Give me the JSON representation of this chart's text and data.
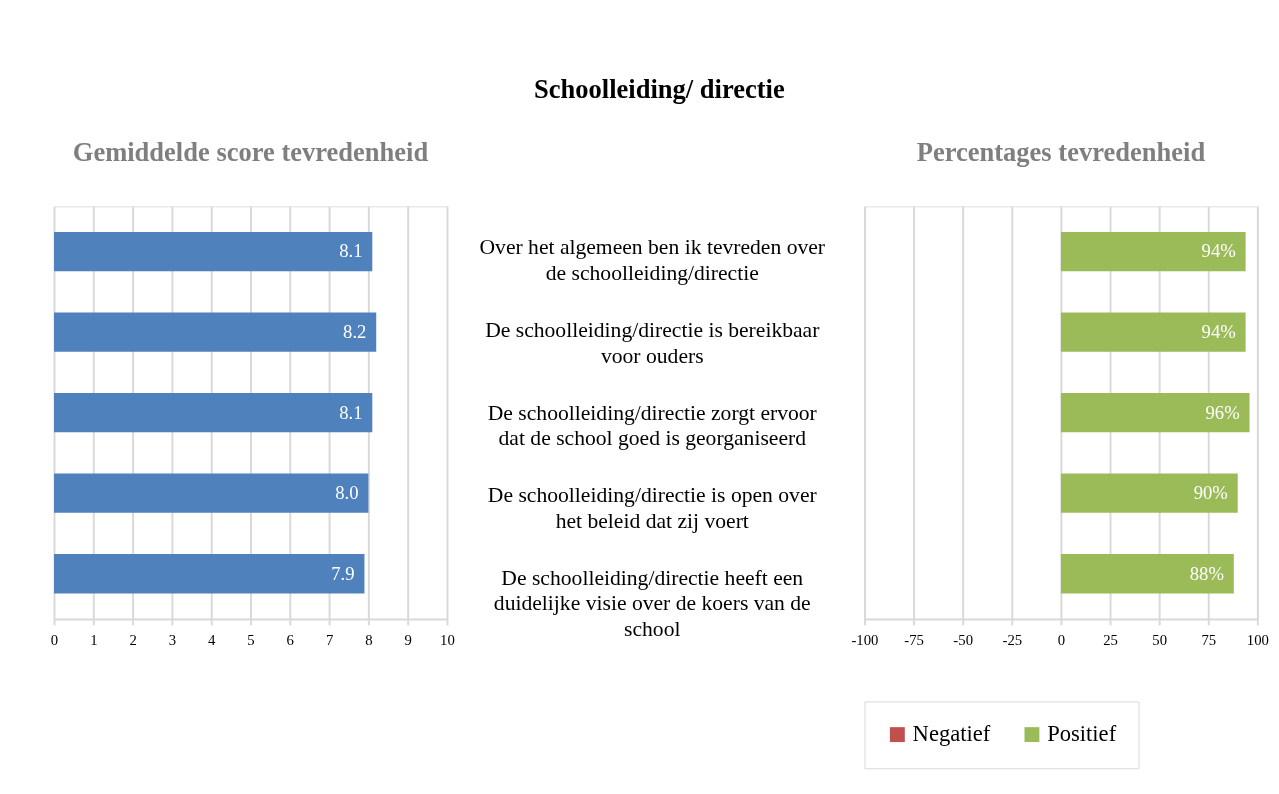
{
  "chart_data": [
    {
      "type": "other",
      "title": "Schoolleiding/ directie"
    },
    {
      "type": "bar",
      "orientation": "horizontal",
      "title": "Gemiddelde score tevredenheid",
      "categories": [
        null,
        null,
        null,
        null,
        null
      ],
      "series": [
        {
          "color": "#4f81bd",
          "values": [
            8.1,
            8.2,
            8.1,
            8.0,
            7.9
          ],
          "value_labels": [
            "8.1",
            "8.2",
            "8.1",
            "8.0",
            "7.9"
          ]
        }
      ],
      "xlim": [
        0,
        10
      ],
      "xticks": [
        0,
        1,
        2,
        3,
        4,
        5,
        6,
        7,
        8,
        9,
        10
      ],
      "grid": "x",
      "tick_labels": "x"
    },
    {
      "type": "bar",
      "orientation": "horizontal",
      "title": "Percentages tevredenheid",
      "categories": [
        "Over het algemeen ben ik tevreden over de schoolleiding/directie",
        "De schoolleiding/directie is bereikbaar voor ouders",
        "De schoolleiding/directie zorgt ervoor dat de school goed is georganiseerd",
        "De schoolleiding/directie is open over het beleid dat zij voert",
        "De schoolleiding/directie heeft een duidelijke visie over de koers van de school"
      ],
      "series": [
        {
          "name": "Negatief",
          "color": "#c0504d",
          "values": [
            null,
            null,
            null,
            null,
            null
          ]
        },
        {
          "name": "Positief",
          "color": "#9bbb59",
          "values": [
            94,
            94,
            96,
            90,
            88
          ],
          "value_labels": [
            "94%",
            "94%",
            "96%",
            "90%",
            "88%"
          ]
        }
      ],
      "xlim": [
        -100,
        100
      ],
      "xticks": [
        -100,
        -75,
        -50,
        -25,
        0,
        25,
        50,
        75,
        100
      ],
      "grid": "x",
      "legend": "bottom"
    }
  ]
}
